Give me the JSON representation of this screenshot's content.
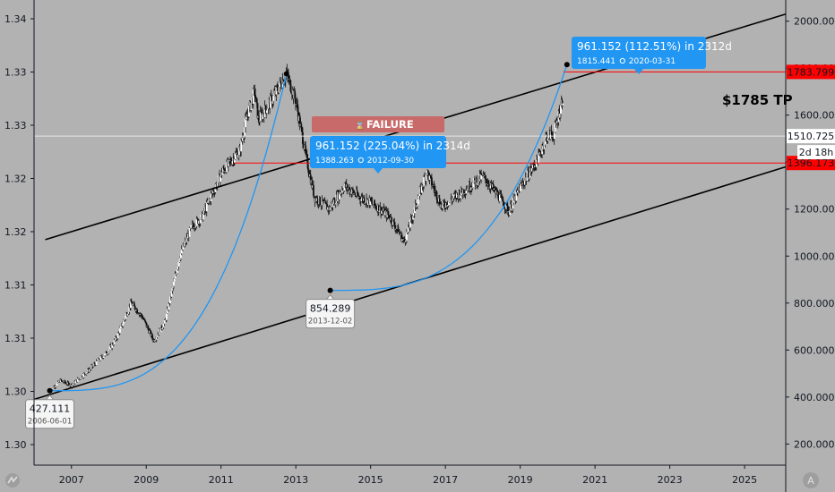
{
  "chart_data": {
    "type": "candlestick",
    "x_ticks": [
      "2007",
      "2009",
      "2011",
      "2013",
      "2015",
      "2017",
      "2019",
      "2021",
      "2023",
      "2025"
    ],
    "x_range": [
      2006.0,
      2026.1
    ],
    "right_axis": {
      "ticks": [
        "200.000",
        "400.000",
        "600.000",
        "800.000",
        "1000.000",
        "1200.000",
        "1400.000",
        "1600.000",
        "1800.000",
        "2000.000"
      ],
      "range": [
        110,
        2090
      ]
    },
    "left_axis": {
      "ticks": [
        "1.30",
        "1.30",
        "1.31",
        "1.31",
        "1.32",
        "1.32",
        "1.33",
        "1.33",
        "1.34"
      ]
    },
    "price_series_approx": [
      [
        2006.42,
        427
      ],
      [
        2006.7,
        470
      ],
      [
        2007.0,
        450
      ],
      [
        2007.5,
        520
      ],
      [
        2008.0,
        600
      ],
      [
        2008.2,
        650
      ],
      [
        2008.6,
        800
      ],
      [
        2008.9,
        740
      ],
      [
        2009.2,
        640
      ],
      [
        2009.5,
        720
      ],
      [
        2009.9,
        1000
      ],
      [
        2010.2,
        1120
      ],
      [
        2010.5,
        1170
      ],
      [
        2011.0,
        1350
      ],
      [
        2011.5,
        1450
      ],
      [
        2011.7,
        1600
      ],
      [
        2011.9,
        1700
      ],
      [
        2012.0,
        1580
      ],
      [
        2012.3,
        1650
      ],
      [
        2012.75,
        1776
      ],
      [
        2013.0,
        1660
      ],
      [
        2013.3,
        1400
      ],
      [
        2013.5,
        1250
      ],
      [
        2013.9,
        1200
      ],
      [
        2014.3,
        1300
      ],
      [
        2014.7,
        1250
      ],
      [
        2015.0,
        1230
      ],
      [
        2015.5,
        1170
      ],
      [
        2015.9,
        1060
      ],
      [
        2016.5,
        1360
      ],
      [
        2016.9,
        1210
      ],
      [
        2017.5,
        1280
      ],
      [
        2018.0,
        1340
      ],
      [
        2018.5,
        1240
      ],
      [
        2018.7,
        1190
      ],
      [
        2019.0,
        1290
      ],
      [
        2019.5,
        1420
      ],
      [
        2019.7,
        1510
      ],
      [
        2019.9,
        1520
      ],
      [
        2020.15,
        1680
      ]
    ],
    "annotations": {
      "failure_label": "FAILURE",
      "failure_icon": "hourglass-icon",
      "measure1": {
        "title": "961.152 (225.04%) in 2314d",
        "price": "1388.263",
        "date": "2012-09-30"
      },
      "measure2": {
        "title": "961.152 (112.51%) in 2312d",
        "price": "1815.441",
        "date": "2020-03-31"
      },
      "low1": {
        "price": "427.111",
        "date": "2006-06-01"
      },
      "low2": {
        "price": "854.289",
        "date": "2013-12-02"
      },
      "tp_label": "$1785 TP",
      "countdown": "2d 18h"
    },
    "price_tags": [
      {
        "value": "1783.799",
        "color": "#ff0000"
      },
      {
        "value": "1510.725",
        "color": "#ffffff"
      },
      {
        "value": "1396.173",
        "color": "#ff0000"
      }
    ],
    "colors": {
      "background": "#b2b2b2",
      "channel": "#000000",
      "curve": "#2196f3",
      "resistance": "#ff0000",
      "failure": "#c96a6a",
      "label_blue": "#2196f3"
    },
    "grid": false
  },
  "icons": {
    "logo_left": "tradingview-logo-icon",
    "logo_right": "auto-scale-icon"
  }
}
